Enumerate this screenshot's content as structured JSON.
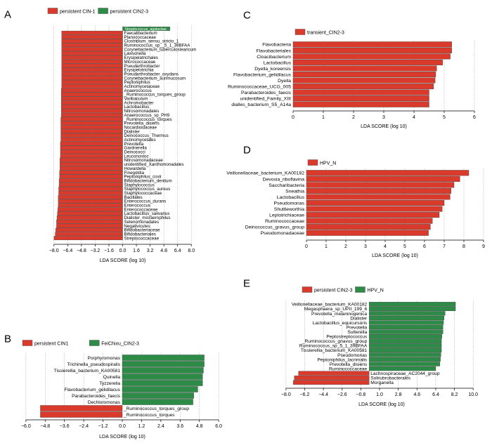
{
  "chart_data": [
    {
      "panel": "A",
      "type": "bar",
      "orientation": "horizontal",
      "legend": [
        {
          "name": "persistent CIN-1",
          "color": "#d93a2b"
        },
        {
          "name": "persistent CIN2-3",
          "color": "#2d8a47"
        }
      ],
      "xlabel": "LDA SCORE (log 10)",
      "xlim": [
        -8.8,
        8.8
      ],
      "ticks": [
        -8.0,
        -6.4,
        -4.8,
        -3.2,
        -1.6,
        0.0,
        1.6,
        3.2,
        4.8,
        6.4,
        8.0
      ],
      "tick_labels": [
        "−8.0",
        "−6.4",
        "−4.8",
        "−3.2",
        "−1.6",
        "0.0",
        "1.6",
        "3.2",
        "4.8",
        "6.4",
        "8.0"
      ],
      "label_side": "right",
      "bars": [
        {
          "label": "Streptococcus_agalactiae",
          "value": 5.5,
          "group": 1
        },
        {
          "label": "Faecalibacterium",
          "value": -7.1,
          "group": 0
        },
        {
          "label": "Planococcaceae",
          "value": -7.1,
          "group": 0
        },
        {
          "label": "Clostridium_sensu_stricto_1",
          "value": -7.1,
          "group": 0
        },
        {
          "label": "Ruminococcus_sp__5_1_39BFAA",
          "value": -7.1,
          "group": 0
        },
        {
          "label": "Corynebacterium_tuberculostearicum",
          "value": -7.1,
          "group": 0
        },
        {
          "label": "Lawsonella",
          "value": -7.1,
          "group": 0
        },
        {
          "label": "Erysipelatrichales",
          "value": -7.1,
          "group": 0
        },
        {
          "label": "Micrococcaceae",
          "value": -7.1,
          "group": 0
        },
        {
          "label": "Pseudarthrobacter",
          "value": -7.1,
          "group": 0
        },
        {
          "label": "Erysipelotrichia",
          "value": -7.1,
          "group": 0
        },
        {
          "label": "Pseudarthrobacter_oxydans",
          "value": -7.1,
          "group": 0
        },
        {
          "label": "Corynebacterium_aurimucosum",
          "value": -7.1,
          "group": 0
        },
        {
          "label": "Peptoniphilus",
          "value": -7.1,
          "group": 0
        },
        {
          "label": "Actinomycetaceae",
          "value": -7.1,
          "group": 0
        },
        {
          "label": "Anaerococcus",
          "value": -7.15,
          "group": 0
        },
        {
          "label": "_Ruminococcus_torques_group",
          "value": -7.15,
          "group": 0
        },
        {
          "label": "Varibaculum",
          "value": -7.15,
          "group": 0
        },
        {
          "label": "Achromobacter",
          "value": -7.15,
          "group": 0
        },
        {
          "label": "Lactobacillus",
          "value": -7.15,
          "group": 0
        },
        {
          "label": "Nitrosomonadales",
          "value": -7.15,
          "group": 0
        },
        {
          "label": "Anaerococcus_sp_PH9",
          "value": -7.15,
          "group": 0
        },
        {
          "label": "_Ruminococcus_torques",
          "value": -7.2,
          "group": 0
        },
        {
          "label": "Prevotella_disiens",
          "value": -7.2,
          "group": 0
        },
        {
          "label": "Nocardioidaceae",
          "value": -7.2,
          "group": 0
        },
        {
          "label": "Dialister",
          "value": -7.2,
          "group": 0
        },
        {
          "label": "Deinococcus_Thermus",
          "value": -7.2,
          "group": 0
        },
        {
          "label": "Actinomycetales",
          "value": -7.2,
          "group": 0
        },
        {
          "label": "Prevotella",
          "value": -7.25,
          "group": 0
        },
        {
          "label": "Gardnerella",
          "value": -7.25,
          "group": 0
        },
        {
          "label": "Deinococci",
          "value": -7.25,
          "group": 0
        },
        {
          "label": "Leuconostoc",
          "value": -7.25,
          "group": 0
        },
        {
          "label": "Nitrosomonadaceae",
          "value": -7.3,
          "group": 0
        },
        {
          "label": "unidentified_Xanthomonadales",
          "value": -7.3,
          "group": 0
        },
        {
          "label": "Howardella",
          "value": -7.3,
          "group": 0
        },
        {
          "label": "Finegoldia",
          "value": -7.35,
          "group": 0
        },
        {
          "label": "Peptoniphilus_coxii",
          "value": -7.35,
          "group": 0
        },
        {
          "label": "Bifidobacterium_dentium",
          "value": -7.4,
          "group": 0
        },
        {
          "label": "Staphylococcus",
          "value": -7.4,
          "group": 0
        },
        {
          "label": "Staphylococcus_aureus",
          "value": -7.45,
          "group": 0
        },
        {
          "label": "Staphylococcaceae",
          "value": -7.45,
          "group": 0
        },
        {
          "label": "Bacillales",
          "value": -7.5,
          "group": 0
        },
        {
          "label": "Enterococcus_durans",
          "value": -7.5,
          "group": 0
        },
        {
          "label": "Enterococcus",
          "value": -7.5,
          "group": 0
        },
        {
          "label": "Enterococcaceae",
          "value": -7.55,
          "group": 0
        },
        {
          "label": "Lactobacillus_salivarius",
          "value": -7.6,
          "group": 0
        },
        {
          "label": "Dialister_micraerophilus",
          "value": -7.65,
          "group": 0
        },
        {
          "label": "Selenomonadales",
          "value": -7.7,
          "group": 0
        },
        {
          "label": "Negativicutes",
          "value": -7.7,
          "group": 0
        },
        {
          "label": "Bifidobacteriaceae",
          "value": -7.8,
          "group": 0
        },
        {
          "label": "Bifidobacteriales",
          "value": -7.85,
          "group": 0
        },
        {
          "label": "Streptococcaceae",
          "value": -8.0,
          "group": 0
        }
      ]
    },
    {
      "panel": "B",
      "type": "bar",
      "orientation": "horizontal",
      "legend": [
        {
          "name": "persistent CIN1",
          "color": "#d93a2b"
        },
        {
          "name": "FeiChixu_CIN2-3",
          "color": "#2d8a47"
        }
      ],
      "xlabel": "LDA SCORE (log 10)",
      "xlim": [
        -6.3,
        6.3
      ],
      "ticks": [
        -6.0,
        -4.8,
        -3.6,
        -2.4,
        -1.2,
        0.0,
        1.2,
        2.4,
        3.6,
        4.8,
        6.0
      ],
      "tick_labels": [
        "−6.0",
        "−4.8",
        "−3.6",
        "−2.4",
        "−1.2",
        "0.0",
        "1.2",
        "2.4",
        "3.6",
        "4.8",
        "6.0"
      ],
      "label_side": "opposite",
      "bars": [
        {
          "label": "Porphyromonas",
          "value": 5.1,
          "group": 1
        },
        {
          "label": "Trichinella_pseudospiralis",
          "value": 5.1,
          "group": 1
        },
        {
          "label": "Tissierellia_bacterium_KA00581",
          "value": 5.05,
          "group": 1
        },
        {
          "label": "Quinella",
          "value": 5.0,
          "group": 1
        },
        {
          "label": "Tyzzerella",
          "value": 5.0,
          "group": 1
        },
        {
          "label": "Flavobacterium_gelidilacus",
          "value": 4.7,
          "group": 1
        },
        {
          "label": "Parabacteroides_faecis",
          "value": 4.45,
          "group": 1
        },
        {
          "label": "Dechloromonas",
          "value": 4.4,
          "group": 1
        },
        {
          "label": "_Ruminococcus_torques_group",
          "value": -5.1,
          "group": 0
        },
        {
          "label": "_Ruminococcus_torques",
          "value": -5.1,
          "group": 0
        }
      ]
    },
    {
      "panel": "C",
      "type": "bar",
      "orientation": "horizontal",
      "legend": [
        {
          "name": "transient_CIN2-3",
          "color": "#d93a2b"
        }
      ],
      "xlabel": "LDA SCORE (log 10)",
      "xlim": [
        0,
        6
      ],
      "ticks": [
        0,
        1,
        2,
        3,
        4,
        5,
        6
      ],
      "tick_labels": [
        "0",
        "1",
        "2",
        "3",
        "4",
        "5",
        "6"
      ],
      "label_side": "left",
      "bars": [
        {
          "label": "Flavobacteria",
          "value": 5.25,
          "group": 0
        },
        {
          "label": "Flavobacteriales",
          "value": 5.25,
          "group": 0
        },
        {
          "label": "Cloacibacterium",
          "value": 5.2,
          "group": 0
        },
        {
          "label": "Lactobacillus",
          "value": 4.95,
          "group": 0
        },
        {
          "label": "Dyella_koreensis",
          "value": 4.75,
          "group": 0
        },
        {
          "label": "Flavobacterium_gelidilacus",
          "value": 4.72,
          "group": 0
        },
        {
          "label": "Dyella",
          "value": 4.7,
          "group": 0
        },
        {
          "label": "Ruminococcaceae_UCG_005",
          "value": 4.65,
          "group": 0
        },
        {
          "label": "Parabacteroides_faecis",
          "value": 4.5,
          "group": 0
        },
        {
          "label": "unidentified_Family_XIII",
          "value": 4.5,
          "group": 0
        },
        {
          "label": "dialles_bacterium_S5_A14a",
          "value": 4.5,
          "group": 0
        }
      ]
    },
    {
      "panel": "D",
      "type": "bar",
      "orientation": "horizontal",
      "legend": [
        {
          "name": "HPV_N",
          "color": "#d93a2b"
        }
      ],
      "xlabel": "LDA SCORE (log 10)",
      "xlim": [
        0,
        9
      ],
      "ticks": [
        0,
        1,
        2,
        3,
        4,
        5,
        6,
        7,
        8,
        9
      ],
      "tick_labels": [
        "0",
        "1",
        "2",
        "3",
        "4",
        "5",
        "6",
        "7",
        "8",
        "9"
      ],
      "label_side": "left",
      "bars": [
        {
          "label": "Veillonellaceae_bacterium_KA00182",
          "value": 8.25,
          "group": 0
        },
        {
          "label": "Devosia_riboflavina",
          "value": 7.8,
          "group": 0
        },
        {
          "label": "Saccharibacteria",
          "value": 7.5,
          "group": 0
        },
        {
          "label": "Sneathia",
          "value": 7.35,
          "group": 0
        },
        {
          "label": "Lactobacillus",
          "value": 7.3,
          "group": 0
        },
        {
          "label": "Pseudomonas",
          "value": 7.0,
          "group": 0
        },
        {
          "label": "Shuttleworthia",
          "value": 6.9,
          "group": 0
        },
        {
          "label": "Leptotrichiaceae",
          "value": 6.75,
          "group": 0
        },
        {
          "label": "Ruminococcaceae",
          "value": 6.4,
          "group": 0
        },
        {
          "label": "Deinococcus_gravus_group",
          "value": 6.3,
          "group": 0
        },
        {
          "label": "Pseudomonadaceae",
          "value": 6.2,
          "group": 0
        }
      ]
    },
    {
      "panel": "E",
      "type": "bar",
      "orientation": "horizontal",
      "legend": [
        {
          "name": "persistent CIN2-3",
          "color": "#d93a2b"
        },
        {
          "name": "HPV_N",
          "color": "#2d8a47"
        }
      ],
      "xlabel": "LDA SCORE (log 10)",
      "xlim": [
        -8.6,
        11.0
      ],
      "ticks": [
        -8.0,
        -6.2,
        -4.4,
        -2.6,
        -0.8,
        1.0,
        2.8,
        4.6,
        6.4,
        8.2,
        10.0
      ],
      "tick_labels": [
        "−8.0",
        "−6.2",
        "−4.4",
        "−2.6",
        "−0.8",
        "1.0",
        "2.8",
        "4.6",
        "6.4",
        "8.2",
        "10.0"
      ],
      "label_side": "opposite",
      "bars": [
        {
          "label": "Veillonellaceae_bacterium_KA00182",
          "value": 8.3,
          "group": 1
        },
        {
          "label": "Megasphaera_sp_UPII_199_6",
          "value": 8.3,
          "group": 1
        },
        {
          "label": "Prevotella_melaninogenica",
          "value": 7.3,
          "group": 1
        },
        {
          "label": "Dialister",
          "value": 7.2,
          "group": 1
        },
        {
          "label": "Lactobacillus_equicursoris",
          "value": 7.15,
          "group": 1
        },
        {
          "label": "Prevotella",
          "value": 7.1,
          "group": 1
        },
        {
          "label": "Sutterella",
          "value": 7.1,
          "group": 1
        },
        {
          "label": "Peptostreptococcus",
          "value": 7.0,
          "group": 1
        },
        {
          "label": "_Ruminococcus_gnavus_group",
          "value": 6.95,
          "group": 1
        },
        {
          "label": "Ruminococcus_sp_5_1_39BFAA",
          "value": 6.95,
          "group": 1
        },
        {
          "label": "Tissierellia_bacterium_KA00581",
          "value": 6.95,
          "group": 1
        },
        {
          "label": "Pseudomonas",
          "value": 6.9,
          "group": 1
        },
        {
          "label": "Peptoniphilus_lacrimalis",
          "value": 6.85,
          "group": 1
        },
        {
          "label": "Prevotella_disiens",
          "value": 6.8,
          "group": 1
        },
        {
          "label": "Ruminococcaceae",
          "value": 6.4,
          "group": 1
        },
        {
          "label": "Lachnospiraceae_AC2044_group",
          "value": -6.8,
          "group": 0
        },
        {
          "label": "Solirubrobacterales",
          "value": -7.2,
          "group": 0
        },
        {
          "label": "Morganella",
          "value": -7.3,
          "group": 0
        }
      ]
    }
  ]
}
